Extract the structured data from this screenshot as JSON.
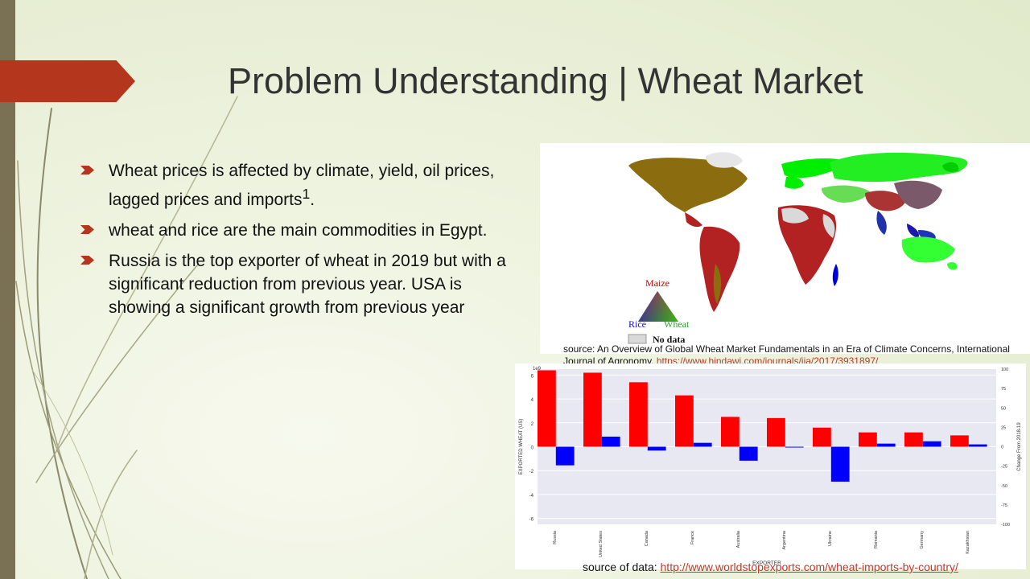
{
  "slide": {
    "title": "Problem Understanding | Wheat Market",
    "bullets": [
      "Wheat prices is affected by climate, yield, oil prices, lagged prices and imports",
      "wheat and rice are the main commodities in Egypt.",
      "Russia is the top exporter of wheat in 2019 but with a significant reduction from previous year. USA is showing a significant growth from previous year"
    ],
    "bullet1_superscript": "1",
    "bullet1_end": ".",
    "accent_color": "#b3361d"
  },
  "map": {
    "legend": {
      "top": "Maize",
      "left": "Rice",
      "right": "Wheat",
      "no_data": "No data"
    },
    "colors": {
      "maize": "#ff0000",
      "rice": "#0000ff",
      "wheat": "#00ff00",
      "no_data": "#d9d9d9"
    },
    "source_text": "source: An Overview  of Global Wheat Market Fundamentals in an Era of Climate Concerns, International Journal  of Agronomy, ",
    "source_link": "https://www.hindawi.com/journals/ija/2017/3931897/"
  },
  "chart_data": {
    "type": "bar",
    "xlabel": "EXPORTER",
    "ylabel": "EXPORTED WHEAT (US)",
    "ylabel_right": "Change From 2018-19",
    "left_multiplier": "1e9",
    "ylim": [
      -6.5,
      6.5
    ],
    "ylim_right": [
      -100,
      100
    ],
    "yticks": [
      6,
      4,
      2,
      0,
      -2,
      -4,
      -6
    ],
    "yticks_right": [
      100,
      75,
      50,
      25,
      0,
      -25,
      -50,
      -75,
      -100
    ],
    "categories": [
      "Russia",
      "United States",
      "Canada",
      "France",
      "Australia",
      "Argentina",
      "Ukraine",
      "Romania",
      "Germany",
      "Kazakhstan"
    ],
    "series": [
      {
        "axis": "left",
        "color": "#ff0000",
        "values": [
          6.4,
          6.2,
          5.4,
          4.3,
          2.5,
          2.4,
          1.6,
          1.2,
          1.2,
          0.95
        ]
      },
      {
        "axis": "right",
        "color": "#0000ff",
        "values": [
          -24,
          13,
          -5,
          5,
          -18,
          -1,
          -45,
          4,
          7,
          3
        ]
      }
    ]
  },
  "data_source": {
    "label": "source of data: ",
    "link": "http://www.worldstopexports.com/wheat-imports-by-country/"
  }
}
